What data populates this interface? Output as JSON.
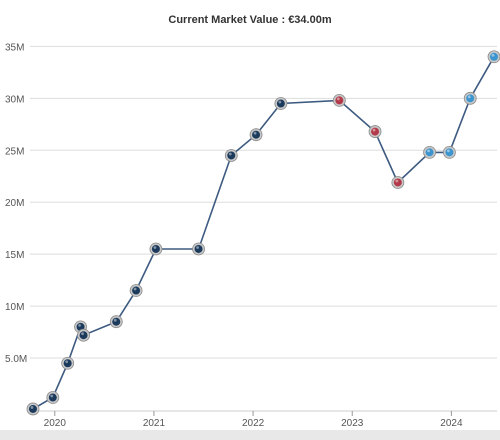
{
  "chart_data": {
    "type": "line",
    "title": "Current Market Value : €34.00m",
    "xlabel": "",
    "ylabel": "",
    "ylim": [
      0,
      36
    ],
    "xlim": [
      2019.75,
      2024.46
    ],
    "y_ticks": [
      {
        "value": 5,
        "label": "5.0M"
      },
      {
        "value": 10,
        "label": "10M"
      },
      {
        "value": 15,
        "label": "15M"
      },
      {
        "value": 20,
        "label": "20M"
      },
      {
        "value": 25,
        "label": "25M"
      },
      {
        "value": 30,
        "label": "30M"
      },
      {
        "value": 35,
        "label": "35M"
      }
    ],
    "x_ticks": [
      {
        "value": 2020,
        "label": "2020"
      },
      {
        "value": 2021,
        "label": "2021"
      },
      {
        "value": 2022,
        "label": "2022"
      },
      {
        "value": 2023,
        "label": "2023"
      },
      {
        "value": 2024,
        "label": "2024"
      }
    ],
    "grid": true,
    "series": [
      {
        "values": [
          {
            "x": 2019.78,
            "y": 0.1,
            "club": "navy"
          },
          {
            "x": 2019.98,
            "y": 1.2,
            "club": "navy"
          },
          {
            "x": 2020.13,
            "y": 4.5,
            "club": "navy"
          },
          {
            "x": 2020.26,
            "y": 8.0,
            "club": "navy"
          },
          {
            "x": 2020.29,
            "y": 7.2,
            "club": "navy"
          },
          {
            "x": 2020.62,
            "y": 8.5,
            "club": "navy"
          },
          {
            "x": 2020.82,
            "y": 11.5,
            "club": "navy"
          },
          {
            "x": 2021.02,
            "y": 15.5,
            "club": "navy"
          },
          {
            "x": 2021.45,
            "y": 15.5,
            "club": "navy"
          },
          {
            "x": 2021.78,
            "y": 24.5,
            "club": "navy"
          },
          {
            "x": 2022.03,
            "y": 26.5,
            "club": "navy"
          },
          {
            "x": 2022.28,
            "y": 29.5,
            "club": "navy"
          },
          {
            "x": 2022.87,
            "y": 29.8,
            "club": "red"
          },
          {
            "x": 2023.23,
            "y": 26.8,
            "club": "red"
          },
          {
            "x": 2023.46,
            "y": 21.9,
            "club": "red"
          },
          {
            "x": 2023.78,
            "y": 24.8,
            "club": "sky"
          },
          {
            "x": 2023.98,
            "y": 24.8,
            "club": "sky"
          },
          {
            "x": 2024.19,
            "y": 30.0,
            "club": "sky"
          },
          {
            "x": 2024.43,
            "y": 34.0,
            "club": "sky"
          }
        ]
      }
    ],
    "colors": {
      "line": "#3d5a80",
      "grid": "#dddddd",
      "navy": "#1b3a5c",
      "red": "#b33a4a",
      "sky": "#3d95cf",
      "marker_ring": "#c8c8c8"
    }
  }
}
